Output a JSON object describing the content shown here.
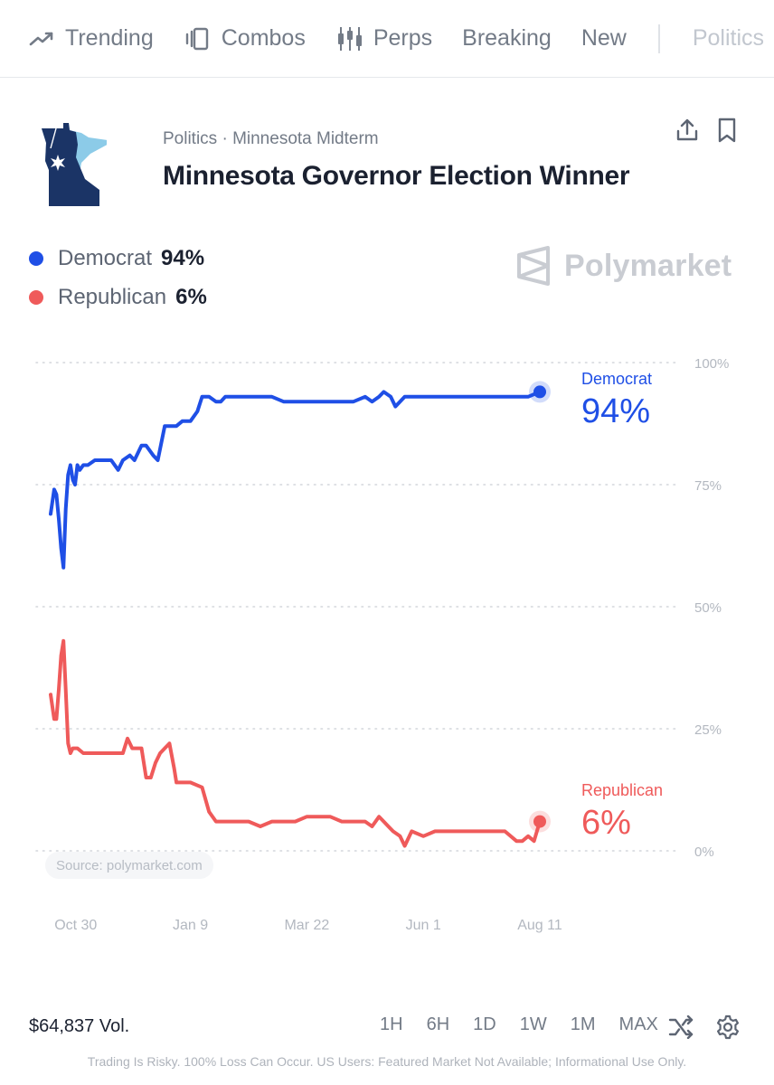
{
  "nav": {
    "items": [
      {
        "label": "Trending",
        "icon": "trending-icon"
      },
      {
        "label": "Combos",
        "icon": "combos-icon"
      },
      {
        "label": "Perps",
        "icon": "candlestick-icon"
      },
      {
        "label": "Breaking",
        "icon": ""
      },
      {
        "label": "New",
        "icon": ""
      }
    ],
    "faded_label": "Politics"
  },
  "header": {
    "breadcrumb": "Politics · Minnesota Midterm",
    "title": "Minnesota Governor Election Winner",
    "icon": "minnesota-map-icon"
  },
  "legend": [
    {
      "name": "Democrat",
      "value": "94%",
      "color": "#1f4fe6"
    },
    {
      "name": "Republican",
      "value": "6%",
      "color": "#ef5a5a"
    }
  ],
  "watermark": "Polymarket",
  "source": "Source: polymarket.com",
  "chart_data": {
    "type": "line",
    "y_ticks": [
      "100%",
      "75%",
      "50%",
      "25%",
      "0%"
    ],
    "ylim": [
      0,
      100
    ],
    "x_tick_labels": [
      "Oct 30",
      "Jan 9",
      "Mar 22",
      "Jun 1",
      "Aug 11"
    ],
    "x_tick_positions": [
      0,
      100,
      200,
      300,
      400
    ],
    "xlim": [
      -20,
      400
    ],
    "grid": true,
    "series": [
      {
        "name": "Democrat",
        "color": "#1f4fe6",
        "end_label": "94%",
        "x": [
          -20,
          -17,
          -15,
          -13,
          -11,
          -9,
          -7,
          -5,
          -3,
          -1,
          1,
          3,
          5,
          8,
          12,
          18,
          25,
          32,
          38,
          42,
          48,
          52,
          58,
          62,
          68,
          72,
          78,
          84,
          88,
          93,
          100,
          106,
          110,
          116,
          122,
          126,
          130,
          134,
          138,
          142,
          146,
          150,
          154,
          160,
          170,
          180,
          190,
          200,
          210,
          220,
          230,
          240,
          250,
          256,
          262,
          266,
          272,
          276,
          280,
          284,
          288,
          294,
          300,
          310,
          330,
          350,
          370,
          390,
          400
        ],
        "y": [
          69,
          74,
          73,
          68,
          62,
          58,
          70,
          77,
          79,
          76,
          75,
          79,
          78,
          79,
          79,
          80,
          80,
          80,
          78,
          80,
          81,
          80,
          83,
          83,
          81,
          80,
          87,
          87,
          87,
          88,
          88,
          90,
          93,
          93,
          92,
          92,
          93,
          93,
          93,
          93,
          93,
          93,
          93,
          93,
          93,
          92,
          92,
          92,
          92,
          92,
          92,
          92,
          93,
          92,
          93,
          94,
          93,
          91,
          92,
          93,
          93,
          93,
          93,
          93,
          93,
          93,
          93,
          93,
          94
        ]
      },
      {
        "name": "Republican",
        "color": "#ef5a5a",
        "end_label": "6%",
        "x": [
          -20,
          -17,
          -15,
          -13,
          -11,
          -9,
          -7,
          -5,
          -3,
          -1,
          1,
          3,
          8,
          12,
          20,
          30,
          38,
          42,
          46,
          50,
          58,
          62,
          66,
          70,
          74,
          78,
          82,
          86,
          88,
          92,
          100,
          110,
          116,
          122,
          130,
          140,
          150,
          160,
          170,
          180,
          190,
          200,
          210,
          220,
          230,
          240,
          250,
          256,
          262,
          266,
          270,
          274,
          280,
          284,
          290,
          300,
          310,
          320,
          340,
          360,
          370,
          380,
          385,
          390,
          395,
          400
        ],
        "y": [
          32,
          27,
          27,
          33,
          40,
          43,
          33,
          22,
          20,
          21,
          21,
          21,
          20,
          20,
          20,
          20,
          20,
          20,
          23,
          21,
          21,
          15,
          15,
          18,
          20,
          21,
          22,
          17,
          14,
          14,
          14,
          13,
          8,
          6,
          6,
          6,
          6,
          5,
          6,
          6,
          6,
          7,
          7,
          7,
          6,
          6,
          6,
          5,
          7,
          6,
          5,
          4,
          3,
          1,
          4,
          3,
          4,
          4,
          4,
          4,
          4,
          2,
          2,
          3,
          2,
          6
        ]
      }
    ]
  },
  "bottom": {
    "volume": "$64,837 Vol.",
    "ranges": [
      "1H",
      "6H",
      "1D",
      "1W",
      "1M",
      "MAX"
    ],
    "disclaimer": "Trading Is Risky. 100% Loss Can Occur. US Users: Featured Market Not Available; Informational Use Only."
  }
}
